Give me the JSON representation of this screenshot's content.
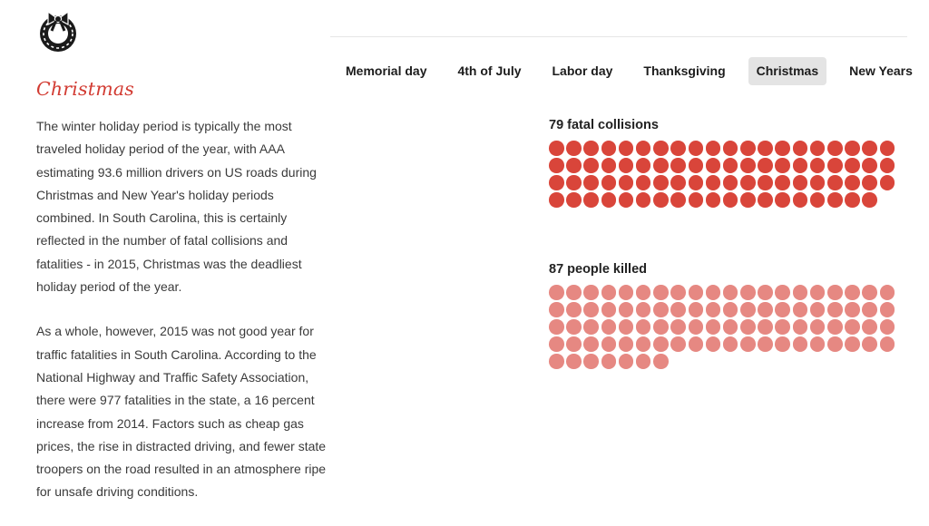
{
  "logo": {
    "icon": "wreath-icon"
  },
  "article": {
    "title": "Christmas",
    "paragraphs": [
      "The winter holiday period is typically the most traveled holiday period of the year, with AAA estimating 93.6 million drivers on US roads during Christmas and New Year's holiday periods combined. In South Carolina, this is certainly reflected in the number of fatal collisions and fatalities - in 2015, Christmas was the deadliest holiday period of the year.",
      "As a whole, however, 2015 was not good year for traffic fatalities in South Carolina. According to the National Highway and Traffic Safety Association, there were 977 fatalities in the state, a 16 percent increase from 2014. Factors such as cheap gas prices, the rise in distracted driving, and fewer state troopers on the road resulted in an atmosphere ripe for unsafe driving conditions."
    ]
  },
  "tabs": [
    {
      "label": "Memorial day",
      "active": false
    },
    {
      "label": "4th of July",
      "active": false
    },
    {
      "label": "Labor day",
      "active": false
    },
    {
      "label": "Thanksgiving",
      "active": false
    },
    {
      "label": "Christmas",
      "active": true
    },
    {
      "label": "New Years",
      "active": false
    }
  ],
  "colors": {
    "accent": "#d23b32",
    "collisions": "#d9453a",
    "killed": "#e68882"
  },
  "chart_data": [
    {
      "type": "waffle",
      "title": "79 fatal collisions",
      "value": 79,
      "color": "#d9453a"
    },
    {
      "type": "waffle",
      "title": "87 people killed",
      "value": 87,
      "color": "#e68882"
    }
  ]
}
